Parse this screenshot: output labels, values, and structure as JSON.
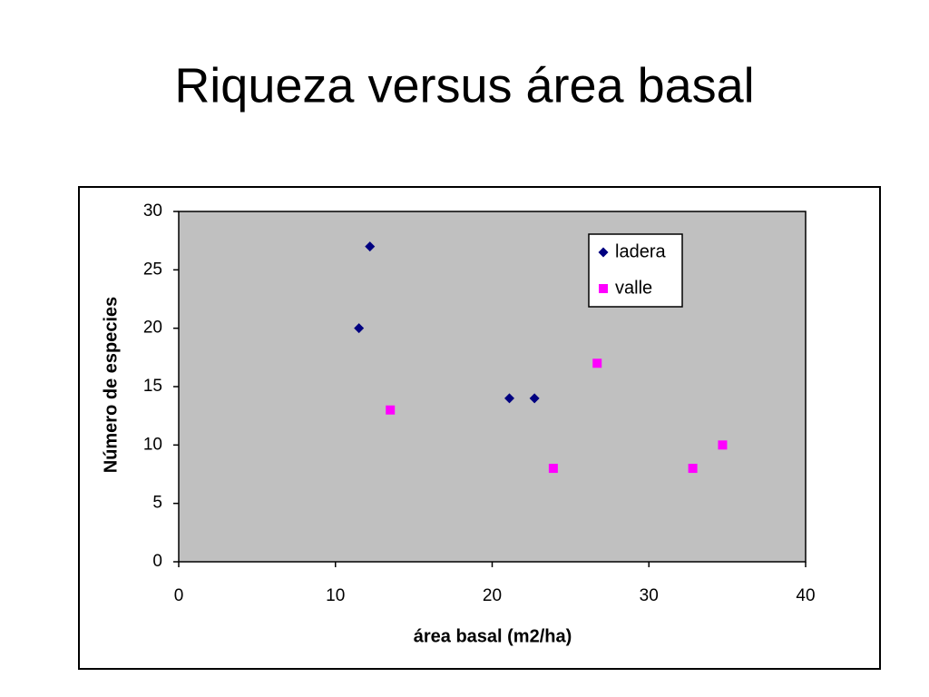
{
  "chart_data": {
    "type": "scatter",
    "title": "Riqueza versus área basal",
    "x_label": "área basal (m2/ha)",
    "y_label": "Número de especies",
    "series": [
      {
        "name": "ladera",
        "color": "#000080",
        "marker": "diamond",
        "x": [
          11.5,
          12.2,
          21.1,
          22.7
        ],
        "values": [
          20,
          27,
          14,
          14
        ]
      },
      {
        "name": "valle",
        "color": "#ff00ff",
        "marker": "square",
        "x": [
          13.5,
          23.9,
          26.7,
          32.8,
          34.7
        ],
        "values": [
          13,
          8,
          17,
          8,
          10
        ]
      }
    ],
    "xlim": [
      0,
      40
    ],
    "xticks": [
      0,
      10,
      20,
      30,
      40
    ],
    "ylim": [
      0,
      30
    ],
    "yticks": [
      0,
      5,
      10,
      15,
      20,
      25,
      30
    ],
    "grid": false,
    "legend": "upper right",
    "plot_background": "#c0c0c0"
  }
}
